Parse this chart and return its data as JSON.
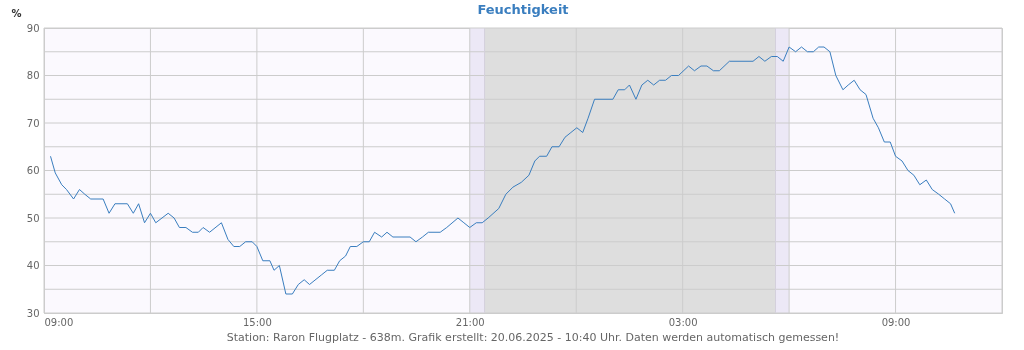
{
  "chart_data": {
    "type": "line",
    "title": "Feuchtigkeit",
    "ylabel": "%",
    "annotations": [
      "Station: Raron Flugplatz - 638m. Grafik erstellt: 20.06.2025 - 10:40 Uhr. Daten werden automatisch gemessen!"
    ],
    "series": [
      {
        "color": "#3a7ebf",
        "x": [
          "2025-06-19T09:11",
          "2025-06-19T09:19",
          "2025-06-19T09:30",
          "2025-06-19T09:38",
          "2025-06-19T09:50",
          "2025-06-19T10:00",
          "2025-06-19T10:09",
          "2025-06-19T10:19",
          "2025-06-19T10:40",
          "2025-06-19T10:50",
          "2025-06-19T11:00",
          "2025-06-19T11:21",
          "2025-06-19T11:31",
          "2025-06-19T11:40",
          "2025-06-19T11:50",
          "2025-06-19T12:00",
          "2025-06-19T12:09",
          "2025-06-19T12:30",
          "2025-06-19T12:40",
          "2025-06-19T12:49",
          "2025-06-19T13:00",
          "2025-06-19T13:11",
          "2025-06-19T13:21",
          "2025-06-19T13:29",
          "2025-06-19T13:40",
          "2025-06-19T14:00",
          "2025-06-19T14:11",
          "2025-06-19T14:21",
          "2025-06-19T14:31",
          "2025-06-19T14:41",
          "2025-06-19T14:52",
          "2025-06-19T15:00",
          "2025-06-19T15:10",
          "2025-06-19T15:22",
          "2025-06-19T15:29",
          "2025-06-19T15:38",
          "2025-06-19T15:49",
          "2025-06-19T16:00",
          "2025-06-19T16:10",
          "2025-06-19T16:20",
          "2025-06-19T16:29",
          "2025-06-19T16:49",
          "2025-06-19T16:59",
          "2025-06-19T17:11",
          "2025-06-19T17:20",
          "2025-06-19T17:30",
          "2025-06-19T17:38",
          "2025-06-19T17:49",
          "2025-06-19T18:00",
          "2025-06-19T18:10",
          "2025-06-19T18:19",
          "2025-06-19T18:31",
          "2025-06-19T18:40",
          "2025-06-19T18:50",
          "2025-06-19T19:19",
          "2025-06-19T19:29",
          "2025-06-19T19:40",
          "2025-06-19T19:50",
          "2025-06-19T20:10",
          "2025-06-19T20:21",
          "2025-06-19T20:40",
          "2025-06-19T20:50",
          "2025-06-19T21:00",
          "2025-06-19T21:11",
          "2025-06-19T21:21",
          "2025-06-19T21:31",
          "2025-06-19T21:49",
          "2025-06-19T22:01",
          "2025-06-19T22:13",
          "2025-06-19T22:27",
          "2025-06-19T22:40",
          "2025-06-19T22:50",
          "2025-06-19T22:58",
          "2025-06-19T23:10",
          "2025-06-19T23:19",
          "2025-06-19T23:31",
          "2025-06-19T23:41",
          "2025-06-19T23:51",
          "2025-06-20T00:01",
          "2025-06-20T00:11",
          "2025-06-20T00:20",
          "2025-06-20T00:31",
          "2025-06-20T01:02",
          "2025-06-20T01:11",
          "2025-06-20T01:22",
          "2025-06-20T01:30",
          "2025-06-20T01:41",
          "2025-06-20T01:51",
          "2025-06-20T02:01",
          "2025-06-20T02:11",
          "2025-06-20T02:21",
          "2025-06-20T02:31",
          "2025-06-20T02:41",
          "2025-06-20T02:53",
          "2025-06-20T03:10",
          "2025-06-20T03:20",
          "2025-06-20T03:31",
          "2025-06-20T03:41",
          "2025-06-20T03:52",
          "2025-06-20T04:02",
          "2025-06-20T04:19",
          "2025-06-20T04:59",
          "2025-06-20T05:09",
          "2025-06-20T05:19",
          "2025-06-20T05:30",
          "2025-06-20T05:40",
          "2025-06-20T05:50",
          "2025-06-20T06:00",
          "2025-06-20T06:11",
          "2025-06-20T06:21",
          "2025-06-20T06:31",
          "2025-06-20T06:41",
          "2025-06-20T06:50",
          "2025-06-20T06:59",
          "2025-06-20T07:09",
          "2025-06-20T07:19",
          "2025-06-20T07:31",
          "2025-06-20T07:40",
          "2025-06-20T07:50",
          "2025-06-20T08:00",
          "2025-06-20T08:10",
          "2025-06-20T08:22",
          "2025-06-20T08:31",
          "2025-06-20T08:41",
          "2025-06-20T08:51",
          "2025-06-20T09:00",
          "2025-06-20T09:11",
          "2025-06-20T09:21",
          "2025-06-20T09:31",
          "2025-06-20T09:41",
          "2025-06-20T09:52",
          "2025-06-20T10:02",
          "2025-06-20T10:13",
          "2025-06-20T10:23",
          "2025-06-20T10:33",
          "2025-06-20T10:40"
        ],
        "values": [
          63,
          59.5,
          57,
          56,
          54,
          56,
          55,
          54,
          54,
          51,
          53,
          53,
          51,
          53,
          49,
          51,
          49,
          51,
          50,
          48,
          48,
          47,
          47,
          48,
          47,
          49,
          45.5,
          44,
          44,
          45,
          45,
          44,
          41,
          41,
          39,
          40,
          34,
          34,
          36,
          37,
          36,
          38,
          39,
          39,
          41,
          42,
          44,
          44,
          45,
          45,
          47,
          46,
          47,
          46,
          46,
          45,
          46,
          47,
          47,
          48,
          50,
          49,
          48,
          49,
          49,
          50,
          52,
          55,
          56.5,
          57.5,
          59,
          62,
          63,
          63,
          65,
          65,
          67,
          68,
          69,
          68,
          71,
          75,
          75,
          77,
          77,
          78,
          75,
          78,
          79,
          78,
          79,
          79,
          80,
          80,
          82,
          81,
          82,
          82,
          81,
          81,
          83,
          83,
          84,
          83,
          84,
          84,
          83,
          86,
          85,
          86,
          85,
          85,
          86,
          86,
          85,
          80,
          77,
          78,
          79,
          77,
          76,
          71,
          69,
          66,
          66,
          63,
          62,
          60,
          59,
          57,
          58,
          56,
          55,
          54,
          53,
          51
        ]
      }
    ],
    "xlim": [
      "2025-06-19T09:00",
      "2025-06-20T12:00"
    ],
    "xticks": [
      {
        "value": "2025-06-19T09:00",
        "label": "09:00"
      },
      {
        "value": "2025-06-19T12:00",
        "label": null
      },
      {
        "value": "2025-06-19T15:00",
        "label": "15:00"
      },
      {
        "value": "2025-06-19T18:00",
        "label": null
      },
      {
        "value": "2025-06-19T21:00",
        "label": "21:00"
      },
      {
        "value": "2025-06-20T00:00",
        "label": null
      },
      {
        "value": "2025-06-20T03:00",
        "label": "03:00"
      },
      {
        "value": "2025-06-20T06:00",
        "label": null
      },
      {
        "value": "2025-06-20T09:00",
        "label": "09:00"
      },
      {
        "value": "2025-06-20T12:00",
        "label": null
      }
    ],
    "ylim": [
      30,
      90
    ],
    "yticks": [
      30,
      {
        "value": 35,
        "label": null
      },
      40,
      {
        "value": 45,
        "label": null
      },
      50,
      {
        "value": 55,
        "label": null
      },
      60,
      {
        "value": 65,
        "label": null
      },
      70,
      {
        "value": 75,
        "label": null
      },
      80,
      {
        "value": 85,
        "label": null
      },
      90
    ],
    "bands": [
      {
        "axis": "x",
        "from": "2025-06-19T21:00",
        "to": "2025-06-19T21:25",
        "color": "#ece8f6"
      },
      {
        "axis": "x",
        "from": "2025-06-19T21:25",
        "to": "2025-06-20T05:37",
        "color": "#dedede"
      },
      {
        "axis": "x",
        "from": "2025-06-20T05:37",
        "to": "2025-06-20T06:00",
        "color": "#ece8f6"
      }
    ],
    "ref_lines": [
      {
        "axis": "x",
        "value": "2025-06-19T21:25",
        "color": "#d4d0dc"
      },
      {
        "axis": "x",
        "value": "2025-06-20T05:37",
        "color": "#d4d0dc"
      }
    ],
    "grid": true,
    "marker": "none",
    "line_style": "solid"
  }
}
